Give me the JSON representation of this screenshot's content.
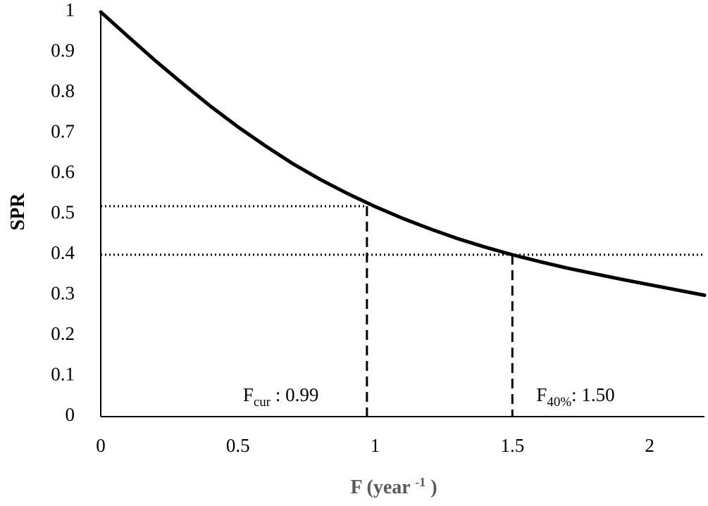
{
  "chart_data": {
    "type": "line",
    "title": "",
    "xlabel": {
      "main": "F (year",
      "sup": "-1",
      "end": ")"
    },
    "ylabel": "SPR",
    "xlim": [
      0,
      2.2
    ],
    "ylim": [
      0,
      1
    ],
    "x_ticks": [
      0,
      0.5,
      1,
      1.5,
      2
    ],
    "x_tick_labels": [
      "0",
      "0.5",
      "1",
      "1.5",
      "2"
    ],
    "y_ticks": [
      0,
      0.1,
      0.2,
      0.3,
      0.4,
      0.5,
      0.6,
      0.7,
      0.8,
      0.9,
      1
    ],
    "y_tick_labels": [
      "0",
      "0.1",
      "0.2",
      "0.3",
      "0.4",
      "0.5",
      "0.6",
      "0.7",
      "0.8",
      "0.9",
      "1"
    ],
    "grid": false,
    "legend": "none",
    "series": [
      {
        "x": [
          0,
          0.1,
          0.2,
          0.3,
          0.4,
          0.5,
          0.6,
          0.7,
          0.8,
          0.9,
          1.0,
          1.1,
          1.2,
          1.3,
          1.4,
          1.5,
          1.6,
          1.7,
          1.8,
          1.9,
          2.0,
          2.1,
          2.2
        ],
        "y": [
          1.0,
          0.939,
          0.879,
          0.822,
          0.767,
          0.716,
          0.669,
          0.625,
          0.586,
          0.551,
          0.519,
          0.49,
          0.464,
          0.44,
          0.419,
          0.4,
          0.383,
          0.367,
          0.353,
          0.339,
          0.326,
          0.313,
          0.3
        ],
        "color": "#000000"
      }
    ],
    "reference_lines": [
      {
        "kind": "horizontal",
        "style": "dotted",
        "y": 0.52,
        "x_range": [
          0,
          0.97
        ]
      },
      {
        "kind": "horizontal",
        "style": "dotted",
        "y": 0.4,
        "x_range": [
          0,
          2.2
        ]
      },
      {
        "kind": "vertical",
        "style": "dashed",
        "x": 0.97,
        "y_range": [
          0,
          0.52
        ]
      },
      {
        "kind": "vertical",
        "style": "dashed",
        "x": 1.5,
        "y_range": [
          0,
          0.4
        ]
      }
    ],
    "annotations": [
      {
        "id": "fcur",
        "main": "F",
        "sub": "cur",
        "text": " : 0.99",
        "x": 0.97,
        "y": 0.04
      },
      {
        "id": "f40",
        "main": "F",
        "sub": "40%",
        "text": ": 1.50",
        "x": 1.5,
        "y": 0.04
      }
    ]
  }
}
